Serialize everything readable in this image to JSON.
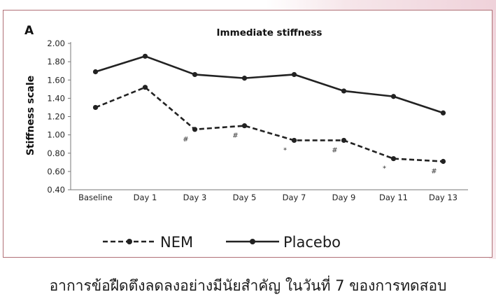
{
  "chart_data": {
    "type": "line",
    "panel_label": "A",
    "title": "Immediate stiffness",
    "xlabel": "",
    "ylabel": "Stiffness scale",
    "categories": [
      "Baseline",
      "Day 1",
      "Day 3",
      "Day 5",
      "Day 7",
      "Day 9",
      "Day 11",
      "Day 13"
    ],
    "ylim": [
      0.4,
      2.0
    ],
    "yticks": [
      "2.00",
      "1.80",
      "1.60",
      "1.40",
      "1.20",
      "1.00",
      "0.80",
      "0.60",
      "0.40"
    ],
    "grid": false,
    "legend_position": "bottom",
    "series": [
      {
        "name": "NEM",
        "style": "dashed",
        "color": "#222222",
        "values": [
          1.3,
          1.52,
          1.06,
          1.1,
          0.94,
          0.94,
          0.74,
          0.71
        ],
        "annotations": [
          "",
          "",
          "#",
          "#",
          "*",
          "#",
          "*",
          "#"
        ]
      },
      {
        "name": "Placebo",
        "style": "solid",
        "color": "#222222",
        "values": [
          1.69,
          1.86,
          1.66,
          1.62,
          1.66,
          1.48,
          1.42,
          1.24
        ]
      }
    ]
  },
  "caption": "อาการข้อฝืดตึงลดลงอย่างมีนัยสำคัญ ในวันที่ 7 ของการทดสอบ",
  "colors": {
    "frame_border": "#b07076",
    "decoration": "#efd2da"
  }
}
